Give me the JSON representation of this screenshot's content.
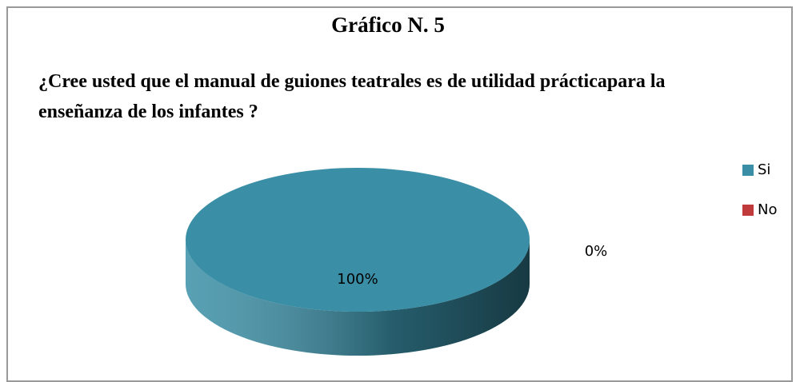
{
  "chart_data": {
    "type": "pie",
    "title": "Gráfico N. 5",
    "subtitle": "¿Cree usted que el manual de guiones teatrales es de utilidad prácticapara la enseñanza de los infantes  ?",
    "categories": [
      "Si",
      "No"
    ],
    "values": [
      100,
      0
    ],
    "value_labels": [
      "100%",
      "0%"
    ],
    "colors": [
      "#3a8fa6",
      "#c0393b"
    ],
    "legend": "right",
    "three_d": true
  }
}
